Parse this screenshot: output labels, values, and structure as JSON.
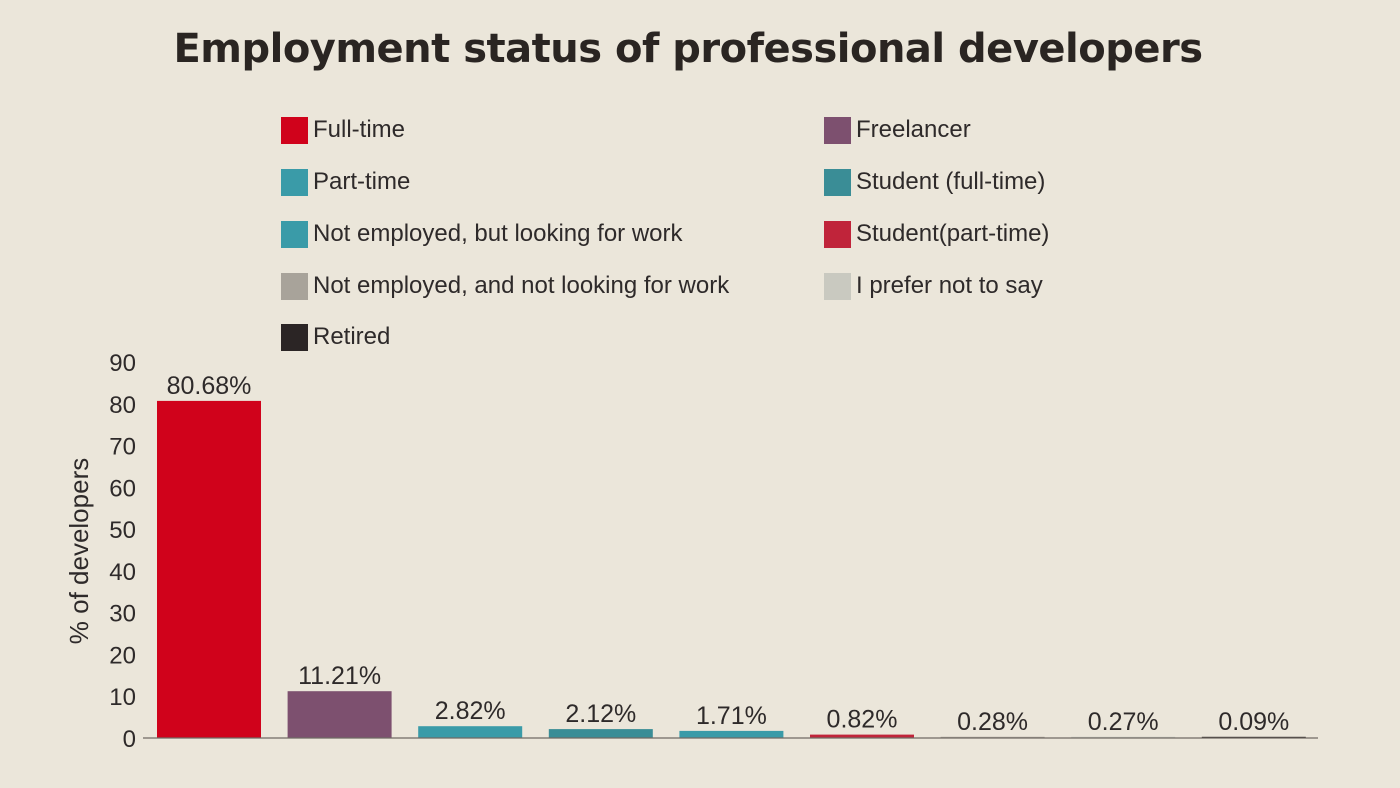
{
  "chart_data": {
    "type": "bar",
    "title": "Employment status of professional developers",
    "ylabel": "% of developers",
    "xlabel": "",
    "ylim": [
      0,
      90
    ],
    "yticks": [
      0,
      10,
      20,
      30,
      40,
      50,
      60,
      70,
      80,
      90
    ],
    "legend_position": "top",
    "grid": false,
    "categories": [
      "Full-time",
      "Freelancer",
      "Part-time",
      "Student (full-time)",
      "Not employed, but looking for work",
      "Student(part-time)",
      "Not employed, and not looking for work",
      "I prefer not to say",
      "Retired"
    ],
    "values": [
      80.68,
      11.21,
      2.82,
      2.12,
      1.71,
      0.82,
      0.28,
      0.27,
      0.09
    ],
    "value_labels": [
      "80.68%",
      "11.21%",
      "2.82%",
      "2.12%",
      "1.71%",
      "0.82%",
      "0.28%",
      "0.27%",
      "0.09%"
    ],
    "colors": [
      "#d0021b",
      "#7d506f",
      "#3a9ba8",
      "#3a8d96",
      "#3a9ba8",
      "#c0243a",
      "#a8a39a",
      "#c9c9c0",
      "#2b2525"
    ]
  },
  "legend": {
    "items": [
      {
        "label": "Full-time",
        "color": "#d0021b"
      },
      {
        "label": "Freelancer",
        "color": "#7d506f"
      },
      {
        "label": "Part-time",
        "color": "#3a9ba8"
      },
      {
        "label": "Student (full-time)",
        "color": "#3a8d96"
      },
      {
        "label": "Not employed, but looking for work",
        "color": "#3a9ba8"
      },
      {
        "label": "Student(part-time)",
        "color": "#c0243a"
      },
      {
        "label": "Not employed, and not looking for work",
        "color": "#a8a39a"
      },
      {
        "label": "I prefer not to say",
        "color": "#c9c9c0"
      },
      {
        "label": "Retired",
        "color": "#2b2525"
      }
    ]
  }
}
